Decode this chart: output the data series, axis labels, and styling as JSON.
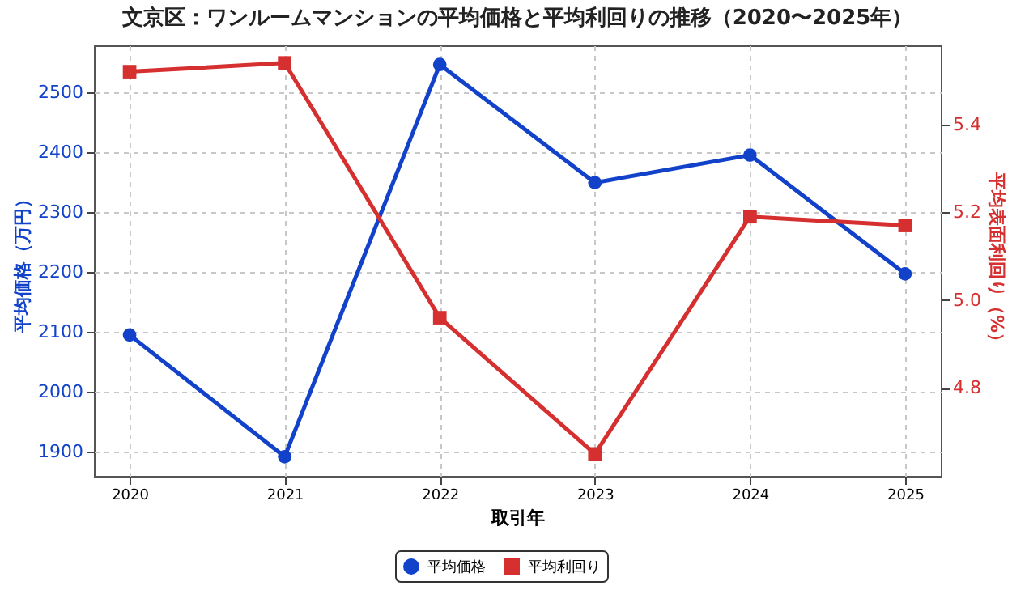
{
  "chart_data": {
    "type": "line",
    "title": "文京区：ワンルームマンションの平均価格と平均利回りの推移（2020〜2025年）",
    "xlabel": "取引年",
    "ylabel": "平均価格（万円）",
    "y2label": "平均表面利回り（%）",
    "categories": [
      "2020",
      "2021",
      "2022",
      "2023",
      "2024",
      "2025"
    ],
    "series": [
      {
        "name": "平均価格",
        "color": "#1142c9",
        "marker": "circle",
        "values": [
          2095,
          1892,
          2546,
          2349,
          2395,
          2197
        ]
      },
      {
        "name": "平均利回り",
        "color": "#d62f2f",
        "marker": "square",
        "axis": "y2",
        "values": [
          5.52,
          5.54,
          4.96,
          4.65,
          5.19,
          5.17
        ]
      }
    ],
    "ylim": [
      1860,
      2578
    ],
    "yticks": [
      1900,
      2000,
      2100,
      2200,
      2300,
      2400,
      2500
    ],
    "y2lim": [
      4.6,
      5.58
    ],
    "y2ticks": [
      {
        "value": 4.8,
        "label": "4.8"
      },
      {
        "value": 5.0,
        "label": "5.0"
      },
      {
        "value": 5.2,
        "label": "5.2"
      },
      {
        "value": 5.4,
        "label": "5.4"
      }
    ],
    "grid": true,
    "legend": "bottom",
    "line_style": "solid"
  }
}
